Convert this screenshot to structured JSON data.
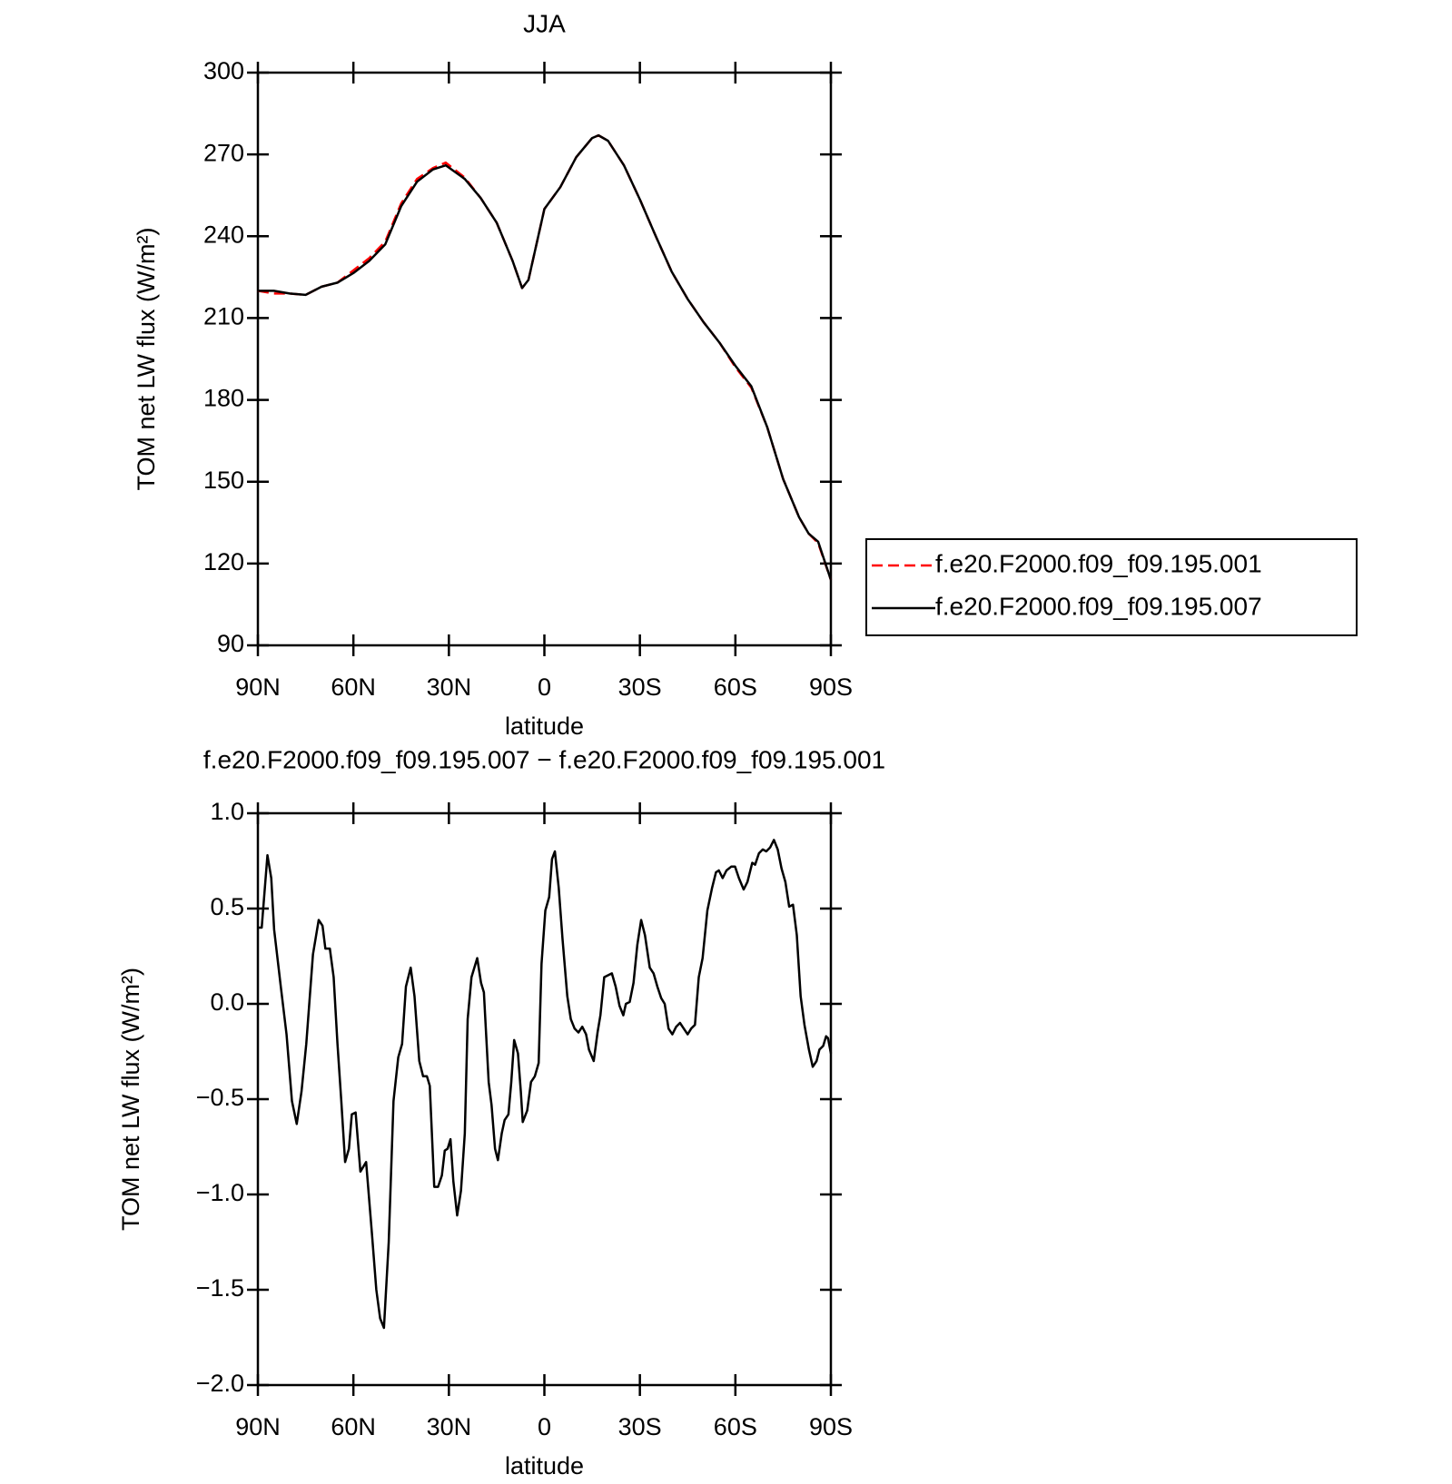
{
  "chart_data": [
    {
      "type": "line",
      "title": "JJA",
      "xlabel": "latitude",
      "ylabel": "TOM net LW flux (W/m²)",
      "x": [
        90,
        85,
        80,
        75,
        70,
        65,
        60,
        55,
        50,
        45,
        40,
        35,
        31,
        25,
        20,
        15,
        10,
        7,
        5,
        0,
        -5,
        -10,
        -15,
        -17,
        -20,
        -25,
        -30,
        -35,
        -40,
        -45,
        -50,
        -55,
        -60,
        -65,
        -70,
        -75,
        -80,
        -83,
        -86,
        -90
      ],
      "series": [
        {
          "name": "f.e20.F2000.f09_f09.195.001",
          "color": "#ff0000",
          "linestyle": "dashed",
          "values": [
            220,
            219,
            219,
            218.5,
            221.5,
            223,
            227.5,
            232,
            238,
            252,
            261,
            265,
            267,
            261.5,
            254,
            245,
            231,
            221,
            224,
            250,
            258,
            269,
            276,
            277,
            275,
            266,
            253.5,
            240,
            227,
            217,
            208.5,
            201,
            192,
            184.5,
            170,
            151,
            137,
            131,
            127.5,
            114
          ]
        },
        {
          "name": "f.e20.F2000.f09_f09.195.007",
          "color": "#000000",
          "linestyle": "solid",
          "values": [
            220,
            220,
            219,
            218.5,
            221.5,
            223,
            226.5,
            231,
            237,
            251,
            260,
            264.5,
            266,
            261,
            254,
            245,
            231,
            221,
            224,
            250,
            258,
            269,
            276,
            277,
            275,
            266,
            253.5,
            240,
            227,
            217,
            208.5,
            201,
            192.5,
            185,
            170,
            151,
            137,
            131,
            128,
            114
          ]
        }
      ],
      "xlim": [
        90,
        -90
      ],
      "xticks": [
        {
          "value": 90,
          "label": "90N"
        },
        {
          "value": 60,
          "label": "60N"
        },
        {
          "value": 30,
          "label": "30N"
        },
        0,
        {
          "value": -30,
          "label": "30S"
        },
        {
          "value": -60,
          "label": "60S"
        },
        {
          "value": -90,
          "label": "90S"
        }
      ],
      "ylim": [
        90,
        300
      ],
      "yticks": [
        90,
        120,
        150,
        180,
        210,
        240,
        270,
        300
      ],
      "legend": "right"
    },
    {
      "type": "line",
      "title": "f.e20.F2000.f09_f09.195.007 − f.e20.F2000.f09_f09.195.001",
      "xlabel": "latitude",
      "ylabel": "TOM net LW flux (W/m²)",
      "x": [
        90,
        88.8,
        87,
        85.8,
        84.9,
        82.8,
        81,
        79.3,
        77.8,
        76.3,
        74.8,
        72.7,
        70.9,
        69.7,
        68.8,
        67.4,
        66.2,
        65,
        63.8,
        62.6,
        61.4,
        60.5,
        59.3,
        57.8,
        56,
        54.2,
        52.8,
        51.6,
        50.4,
        48.9,
        47.4,
        45.9,
        44.7,
        43.5,
        42,
        40.8,
        39.3,
        38.1,
        36.9,
        36,
        34.6,
        33.4,
        32.2,
        31.3,
        30.4,
        29.5,
        28.6,
        27.4,
        26.2,
        25,
        24.1,
        22.9,
        21.1,
        19.9,
        19,
        17.5,
        16.6,
        15.5,
        14.6,
        13.4,
        12.5,
        11.3,
        10.4,
        9.5,
        8.3,
        7.4,
        6.8,
        5.4,
        4.2,
        3,
        1.8,
        0.9,
        -0.3,
        -1.5,
        -2.4,
        -3.3,
        -4.5,
        -5.7,
        -7.2,
        -8.3,
        -9.5,
        -10.7,
        -11.9,
        -13.1,
        -14,
        -15.5,
        -16.7,
        -17.6,
        -18.8,
        -20,
        -21.2,
        -22.4,
        -23.6,
        -24.8,
        -25.6,
        -26.8,
        -28,
        -29.2,
        -30.4,
        -31.6,
        -33.1,
        -34.3,
        -35.5,
        -36.7,
        -37.8,
        -39,
        -40.2,
        -41.4,
        -42.6,
        -43.8,
        -45,
        -46.1,
        -47.3,
        -48.5,
        -49.7,
        -51.2,
        -52.7,
        -53.9,
        -54.8,
        -56,
        -57.2,
        -58.7,
        -59.9,
        -61.1,
        -62.6,
        -63.8,
        -65.3,
        -66.2,
        -67.4,
        -68.6,
        -69.7,
        -70.9,
        -72.1,
        -73.3,
        -74.5,
        -75.7,
        -76.9,
        -78.1,
        -79.3,
        -80.5,
        -81.7,
        -83.1,
        -84.3,
        -85.5,
        -86.4,
        -87.6,
        -88.5,
        -89.1,
        -90
      ],
      "series": [
        {
          "color": "#000000",
          "linestyle": "solid",
          "values": [
            0.4,
            0.4,
            0.78,
            0.66,
            0.39,
            0.09,
            -0.16,
            -0.51,
            -0.63,
            -0.46,
            -0.21,
            0.26,
            0.44,
            0.41,
            0.29,
            0.29,
            0.14,
            -0.21,
            -0.51,
            -0.83,
            -0.76,
            -0.58,
            -0.57,
            -0.88,
            -0.83,
            -1.2,
            -1.5,
            -1.65,
            -1.7,
            -1.25,
            -0.51,
            -0.28,
            -0.21,
            0.09,
            0.19,
            0.04,
            -0.3,
            -0.38,
            -0.38,
            -0.43,
            -0.96,
            -0.96,
            -0.9,
            -0.77,
            -0.76,
            -0.71,
            -0.93,
            -1.11,
            -0.98,
            -0.68,
            -0.08,
            0.14,
            0.24,
            0.11,
            0.06,
            -0.41,
            -0.53,
            -0.76,
            -0.82,
            -0.68,
            -0.61,
            -0.58,
            -0.41,
            -0.19,
            -0.26,
            -0.46,
            -0.62,
            -0.56,
            -0.41,
            -0.38,
            -0.31,
            0.21,
            0.49,
            0.56,
            0.76,
            0.8,
            0.61,
            0.34,
            0.04,
            -0.08,
            -0.13,
            -0.15,
            -0.12,
            -0.16,
            -0.24,
            -0.3,
            -0.15,
            -0.06,
            0.14,
            0.15,
            0.16,
            0.09,
            -0.01,
            -0.06,
            0.0,
            0.01,
            0.11,
            0.31,
            0.44,
            0.36,
            0.19,
            0.16,
            0.09,
            0.03,
            0.0,
            -0.13,
            -0.16,
            -0.12,
            -0.1,
            -0.13,
            -0.16,
            -0.13,
            -0.11,
            0.14,
            0.24,
            0.49,
            0.61,
            0.69,
            0.7,
            0.66,
            0.7,
            0.72,
            0.72,
            0.66,
            0.6,
            0.64,
            0.74,
            0.73,
            0.79,
            0.81,
            0.8,
            0.82,
            0.86,
            0.81,
            0.71,
            0.64,
            0.51,
            0.52,
            0.36,
            0.04,
            -0.11,
            -0.24,
            -0.33,
            -0.3,
            -0.24,
            -0.22,
            -0.17,
            -0.18,
            -0.26
          ]
        }
      ],
      "xlim": [
        90,
        -90
      ],
      "xticks": [
        {
          "value": 90,
          "label": "90N"
        },
        {
          "value": 60,
          "label": "60N"
        },
        {
          "value": 30,
          "label": "30N"
        },
        0,
        {
          "value": -30,
          "label": "30S"
        },
        {
          "value": -60,
          "label": "60S"
        },
        {
          "value": -90,
          "label": "90S"
        }
      ],
      "ylim": [
        -2,
        1
      ],
      "yticks": [
        {
          "value": -2,
          "label": "−2.0"
        },
        {
          "value": -1.5,
          "label": "−1.5"
        },
        {
          "value": -1,
          "label": "−1.0"
        },
        {
          "value": -0.5,
          "label": "−0.5"
        },
        {
          "value": 0,
          "label": "0.0"
        },
        0.5,
        {
          "value": 1,
          "label": "1.0"
        }
      ]
    }
  ]
}
